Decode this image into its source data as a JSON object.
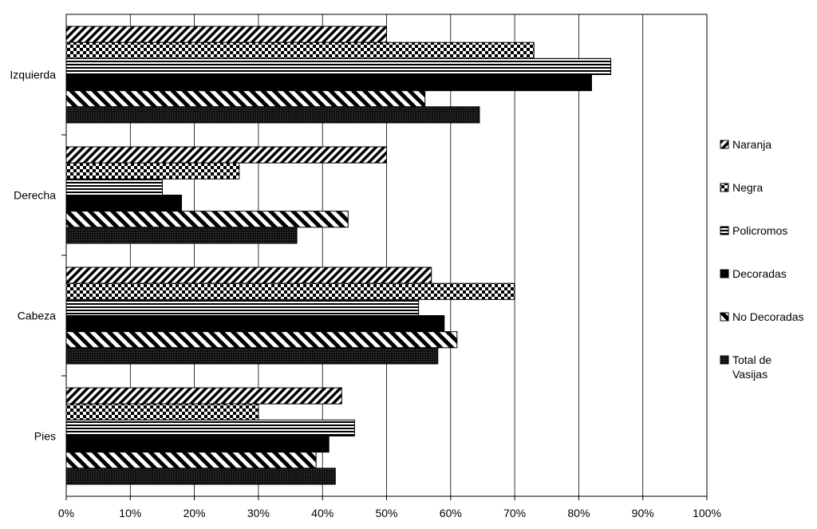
{
  "chart_data": {
    "type": "bar",
    "orientation": "horizontal",
    "categories": [
      "Izquierda",
      "Derecha",
      "Cabeza",
      "Pies"
    ],
    "series": [
      {
        "name": "Naranja",
        "pattern": "diagonal-hatch",
        "values": [
          50,
          50,
          57,
          43
        ]
      },
      {
        "name": "Negra",
        "pattern": "checker",
        "values": [
          73,
          27,
          70,
          30
        ]
      },
      {
        "name": "Policromos",
        "pattern": "horizontal-lines",
        "values": [
          85,
          15,
          55,
          45
        ]
      },
      {
        "name": "Decoradas",
        "pattern": "solid-black",
        "values": [
          82,
          18,
          59,
          41
        ]
      },
      {
        "name": "No Decoradas",
        "pattern": "wide-diagonal",
        "values": [
          56,
          44,
          61,
          39
        ]
      },
      {
        "name": "Total de Vasijas",
        "name_lines": [
          "Total de",
          "Vasijas"
        ],
        "pattern": "dense-black",
        "values": [
          64.5,
          36,
          58,
          42
        ]
      }
    ],
    "x_ticks": [
      "0%",
      "10%",
      "20%",
      "30%",
      "40%",
      "50%",
      "60%",
      "70%",
      "80%",
      "90%",
      "100%"
    ],
    "xlim": [
      0,
      100
    ],
    "grid": "vertical",
    "legend": "right"
  }
}
